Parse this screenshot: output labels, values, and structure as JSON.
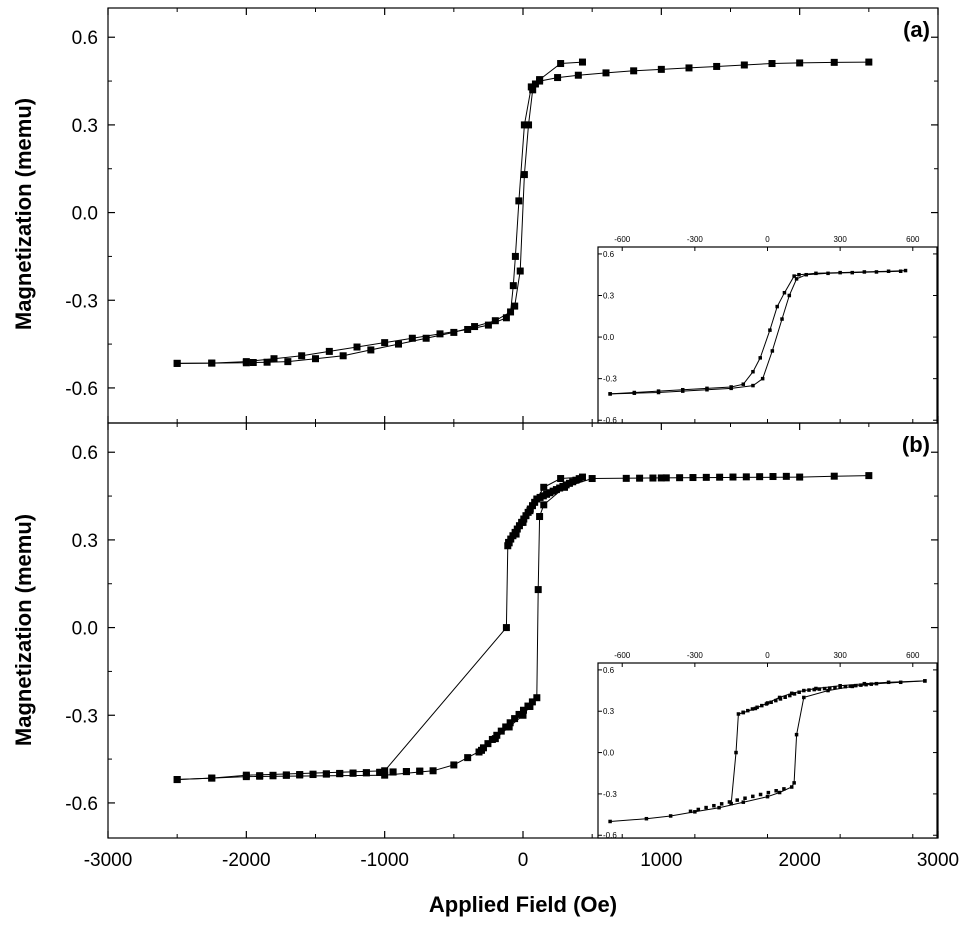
{
  "figure": {
    "xlabel": "Applied Field (Oe)",
    "ylabel_top": "Magnetization (memu)",
    "ylabel_bottom": "Magnetization (memu)"
  },
  "chart_data": [
    {
      "id": "panel-a",
      "type": "scatter",
      "panel_label": "(a)",
      "xlabel": "Applied Field (Oe)",
      "ylabel": "Magnetization (memu)",
      "xlim": [
        -3000,
        3000
      ],
      "ylim": [
        -0.72,
        0.7
      ],
      "xticks": [
        -3000,
        -2000,
        -1000,
        0,
        1000,
        2000,
        3000
      ],
      "yticks": [
        -0.6,
        -0.3,
        0.0,
        0.3,
        0.6
      ],
      "ytick_labels": [
        "-0.6",
        "-0.3",
        "0.0",
        "0.3",
        "0.6"
      ],
      "tick_labels_shown": false,
      "grid": false,
      "marker": "square",
      "color": "#000000",
      "series": [
        {
          "x": [
            430,
            272,
            120,
            60,
            10,
            -30,
            -55,
            -70,
            -90,
            -200,
            -350,
            -500,
            -700,
            -900,
            -1100,
            -1300,
            -1500,
            -1700,
            -1850,
            -1950,
            -2000,
            -2250,
            -2500
          ],
          "y": [
            0.515,
            0.51,
            0.455,
            0.43,
            0.3,
            0.04,
            -0.15,
            -0.25,
            -0.34,
            -0.37,
            -0.39,
            -0.41,
            -0.43,
            -0.45,
            -0.47,
            -0.49,
            -0.5,
            -0.51,
            -0.512,
            -0.513,
            -0.514,
            -0.515,
            -0.516
          ]
        },
        {
          "x": [
            -2500,
            -2250,
            -2000,
            -1800,
            -1600,
            -1400,
            -1200,
            -1000,
            -800,
            -600,
            -400,
            -250,
            -120,
            -60,
            -20,
            10,
            40,
            70,
            90,
            120,
            250,
            400,
            600,
            800,
            1000,
            1200,
            1400,
            1600,
            1800,
            2000,
            2250,
            2500
          ],
          "y": [
            -0.516,
            -0.515,
            -0.51,
            -0.5,
            -0.49,
            -0.475,
            -0.46,
            -0.445,
            -0.43,
            -0.415,
            -0.4,
            -0.385,
            -0.36,
            -0.32,
            -0.2,
            0.13,
            0.3,
            0.42,
            0.44,
            0.45,
            0.462,
            0.47,
            0.478,
            0.485,
            0.49,
            0.495,
            0.5,
            0.505,
            0.51,
            0.512,
            0.514,
            0.515
          ]
        }
      ],
      "inset": {
        "type": "scatter",
        "xlim": [
          -700,
          700
        ],
        "ylim": [
          -0.62,
          0.65
        ],
        "xticks": [
          -600,
          -300,
          0,
          300,
          600
        ],
        "xtick_labels": [
          "-600",
          "-300",
          "0",
          "300",
          "600"
        ],
        "yticks": [
          -0.6,
          -0.3,
          0.0,
          0.3,
          0.6
        ],
        "ytick_labels": [
          "-0.6",
          "-0.3",
          "0.0",
          "0.3",
          "0.6"
        ],
        "xaxis_position": "top",
        "series": [
          {
            "x": [
              570,
              500,
              400,
              300,
              200,
              130,
              110,
              70,
              40,
              10,
              -30,
              -60,
              -100,
              -150,
              -250,
              -350,
              -450,
              -550,
              -650
            ],
            "y": [
              0.48,
              0.475,
              0.47,
              0.465,
              0.46,
              0.45,
              0.44,
              0.32,
              0.22,
              0.05,
              -0.15,
              -0.25,
              -0.34,
              -0.36,
              -0.37,
              -0.38,
              -0.39,
              -0.4,
              -0.41
            ]
          },
          {
            "x": [
              -650,
              -550,
              -450,
              -350,
              -250,
              -150,
              -60,
              -20,
              20,
              60,
              90,
              120,
              160,
              250,
              350,
              450,
              550
            ],
            "y": [
              -0.41,
              -0.405,
              -0.4,
              -0.39,
              -0.38,
              -0.37,
              -0.35,
              -0.3,
              -0.1,
              0.13,
              0.3,
              0.42,
              0.45,
              0.46,
              0.465,
              0.47,
              0.475
            ]
          }
        ]
      }
    },
    {
      "id": "panel-b",
      "type": "scatter",
      "panel_label": "(b)",
      "xlabel": "Applied Field (Oe)",
      "ylabel": "Magnetization (memu)",
      "xlim": [
        -3000,
        3000
      ],
      "ylim": [
        -0.72,
        0.7
      ],
      "xticks": [
        -3000,
        -2000,
        -1000,
        0,
        1000,
        2000,
        3000
      ],
      "xtick_labels": [
        "-3000",
        "-2000",
        "-1000",
        "0",
        "1000",
        "2000",
        "3000"
      ],
      "yticks": [
        -0.6,
        -0.3,
        0.0,
        0.3,
        0.6
      ],
      "ytick_labels": [
        "-0.6",
        "-0.3",
        "0.0",
        "0.3",
        "0.6"
      ],
      "grid": false,
      "marker": "square",
      "color": "#000000",
      "series": [
        {
          "x": [
            430,
            272,
            150,
            100,
            50,
            0,
            -50,
            -100,
            -110,
            -120,
            -1000,
            -2000,
            -2250,
            -2500
          ],
          "y": [
            0.515,
            0.51,
            0.48,
            0.44,
            0.4,
            0.36,
            0.32,
            0.29,
            0.28,
            0.0,
            -0.49,
            -0.505,
            -0.515,
            -0.52
          ],
          "dense": [
            [
              -2000,
              -650,
              -0.508,
              -0.49
            ],
            [
              -120,
              100,
              0.28,
              0.44
            ],
            [
              100,
              430,
              0.44,
              0.515
            ]
          ]
        },
        {
          "x": [
            -2500,
            -2250,
            -2000,
            -1000,
            -650,
            -500,
            -400,
            -300,
            -200,
            -100,
            0,
            50,
            100,
            110,
            120,
            150,
            300,
            500,
            1000,
            2000,
            2250,
            2500
          ],
          "y": [
            -0.52,
            -0.515,
            -0.51,
            -0.505,
            -0.49,
            -0.47,
            -0.445,
            -0.42,
            -0.38,
            -0.34,
            -0.3,
            -0.27,
            -0.24,
            0.13,
            0.38,
            0.42,
            0.48,
            0.51,
            0.512,
            0.515,
            0.518,
            0.52
          ],
          "dense": [
            [
              -2000,
              -650,
              -0.51,
              -0.49
            ],
            [
              -350,
              100,
              -0.44,
              -0.24
            ],
            [
              650,
              2000,
              0.51,
              0.518
            ]
          ]
        }
      ],
      "inset": {
        "type": "scatter",
        "xlim": [
          -700,
          700
        ],
        "ylim": [
          -0.62,
          0.65
        ],
        "xticks": [
          -600,
          -300,
          0,
          300,
          600
        ],
        "xtick_labels": [
          "-600",
          "-300",
          "0",
          "300",
          "600"
        ],
        "yticks": [
          -0.6,
          -0.3,
          0.0,
          0.3,
          0.6
        ],
        "ytick_labels": [
          "-0.6",
          "-0.3",
          "0.0",
          "0.3",
          "0.6"
        ],
        "xaxis_position": "top",
        "series": [
          {
            "x": [
              650,
              500,
              400,
              300,
              200,
              150,
              100,
              50,
              0,
              -50,
              -100,
              -120,
              -130,
              -150
            ],
            "y": [
              0.52,
              0.51,
              0.5,
              0.485,
              0.465,
              0.45,
              0.43,
              0.4,
              0.36,
              0.32,
              0.29,
              0.28,
              0.0,
              -0.37
            ],
            "dense": [
              [
                -120,
                150,
                0.28,
                0.45
              ],
              [
                150,
                450,
                0.45,
                0.5
              ]
            ]
          },
          {
            "x": [
              -650,
              -500,
              -400,
              -300,
              -200,
              -100,
              0,
              50,
              100,
              110,
              120,
              150,
              250,
              350,
              450,
              550,
              650
            ],
            "y": [
              -0.5,
              -0.48,
              -0.46,
              -0.43,
              -0.4,
              -0.36,
              -0.32,
              -0.29,
              -0.25,
              -0.22,
              0.13,
              0.4,
              0.45,
              0.48,
              0.5,
              0.51,
              0.52
            ],
            "dense": [
              [
                -350,
                100,
                -0.44,
                -0.25
              ]
            ]
          }
        ]
      }
    }
  ]
}
